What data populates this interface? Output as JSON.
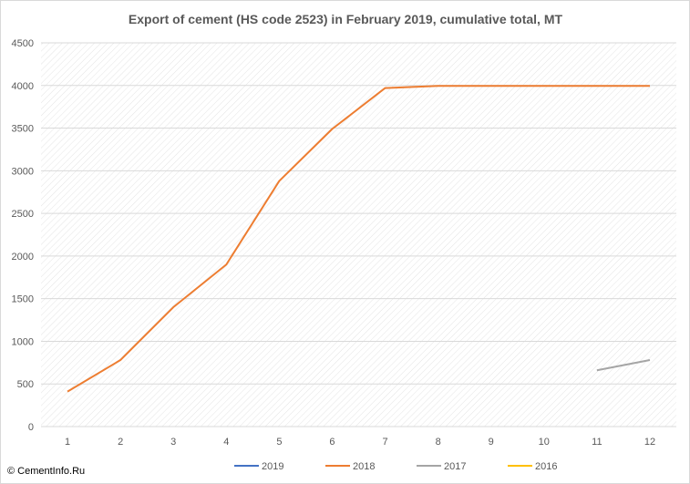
{
  "chart_data": {
    "type": "line",
    "title": "Export of cement (HS code 2523) in February 2019, cumulative total, MT",
    "xlabel": "",
    "ylabel": "",
    "x": [
      1,
      2,
      3,
      4,
      5,
      6,
      7,
      8,
      9,
      10,
      11,
      12
    ],
    "ylim": [
      0,
      4500
    ],
    "yticks": [
      0,
      500,
      1000,
      1500,
      2000,
      2500,
      3000,
      3500,
      4000,
      4500
    ],
    "grid": true,
    "legend_position": "bottom",
    "series": [
      {
        "name": "2019",
        "color": "#4472C4",
        "values": [
          null,
          null,
          null,
          null,
          null,
          null,
          null,
          null,
          null,
          null,
          null,
          null
        ]
      },
      {
        "name": "2018",
        "color": "#ED7D31",
        "values": [
          410,
          780,
          1400,
          1900,
          2880,
          3490,
          3970,
          3995,
          3995,
          3995,
          3995,
          3995
        ]
      },
      {
        "name": "2017",
        "color": "#A5A5A5",
        "values": [
          null,
          null,
          null,
          null,
          null,
          null,
          null,
          null,
          null,
          null,
          660,
          780
        ]
      },
      {
        "name": "2016",
        "color": "#FFC000",
        "values": [
          null,
          null,
          null,
          null,
          null,
          null,
          null,
          null,
          null,
          null,
          null,
          null
        ]
      }
    ]
  },
  "copyright": "© CementInfo.Ru"
}
